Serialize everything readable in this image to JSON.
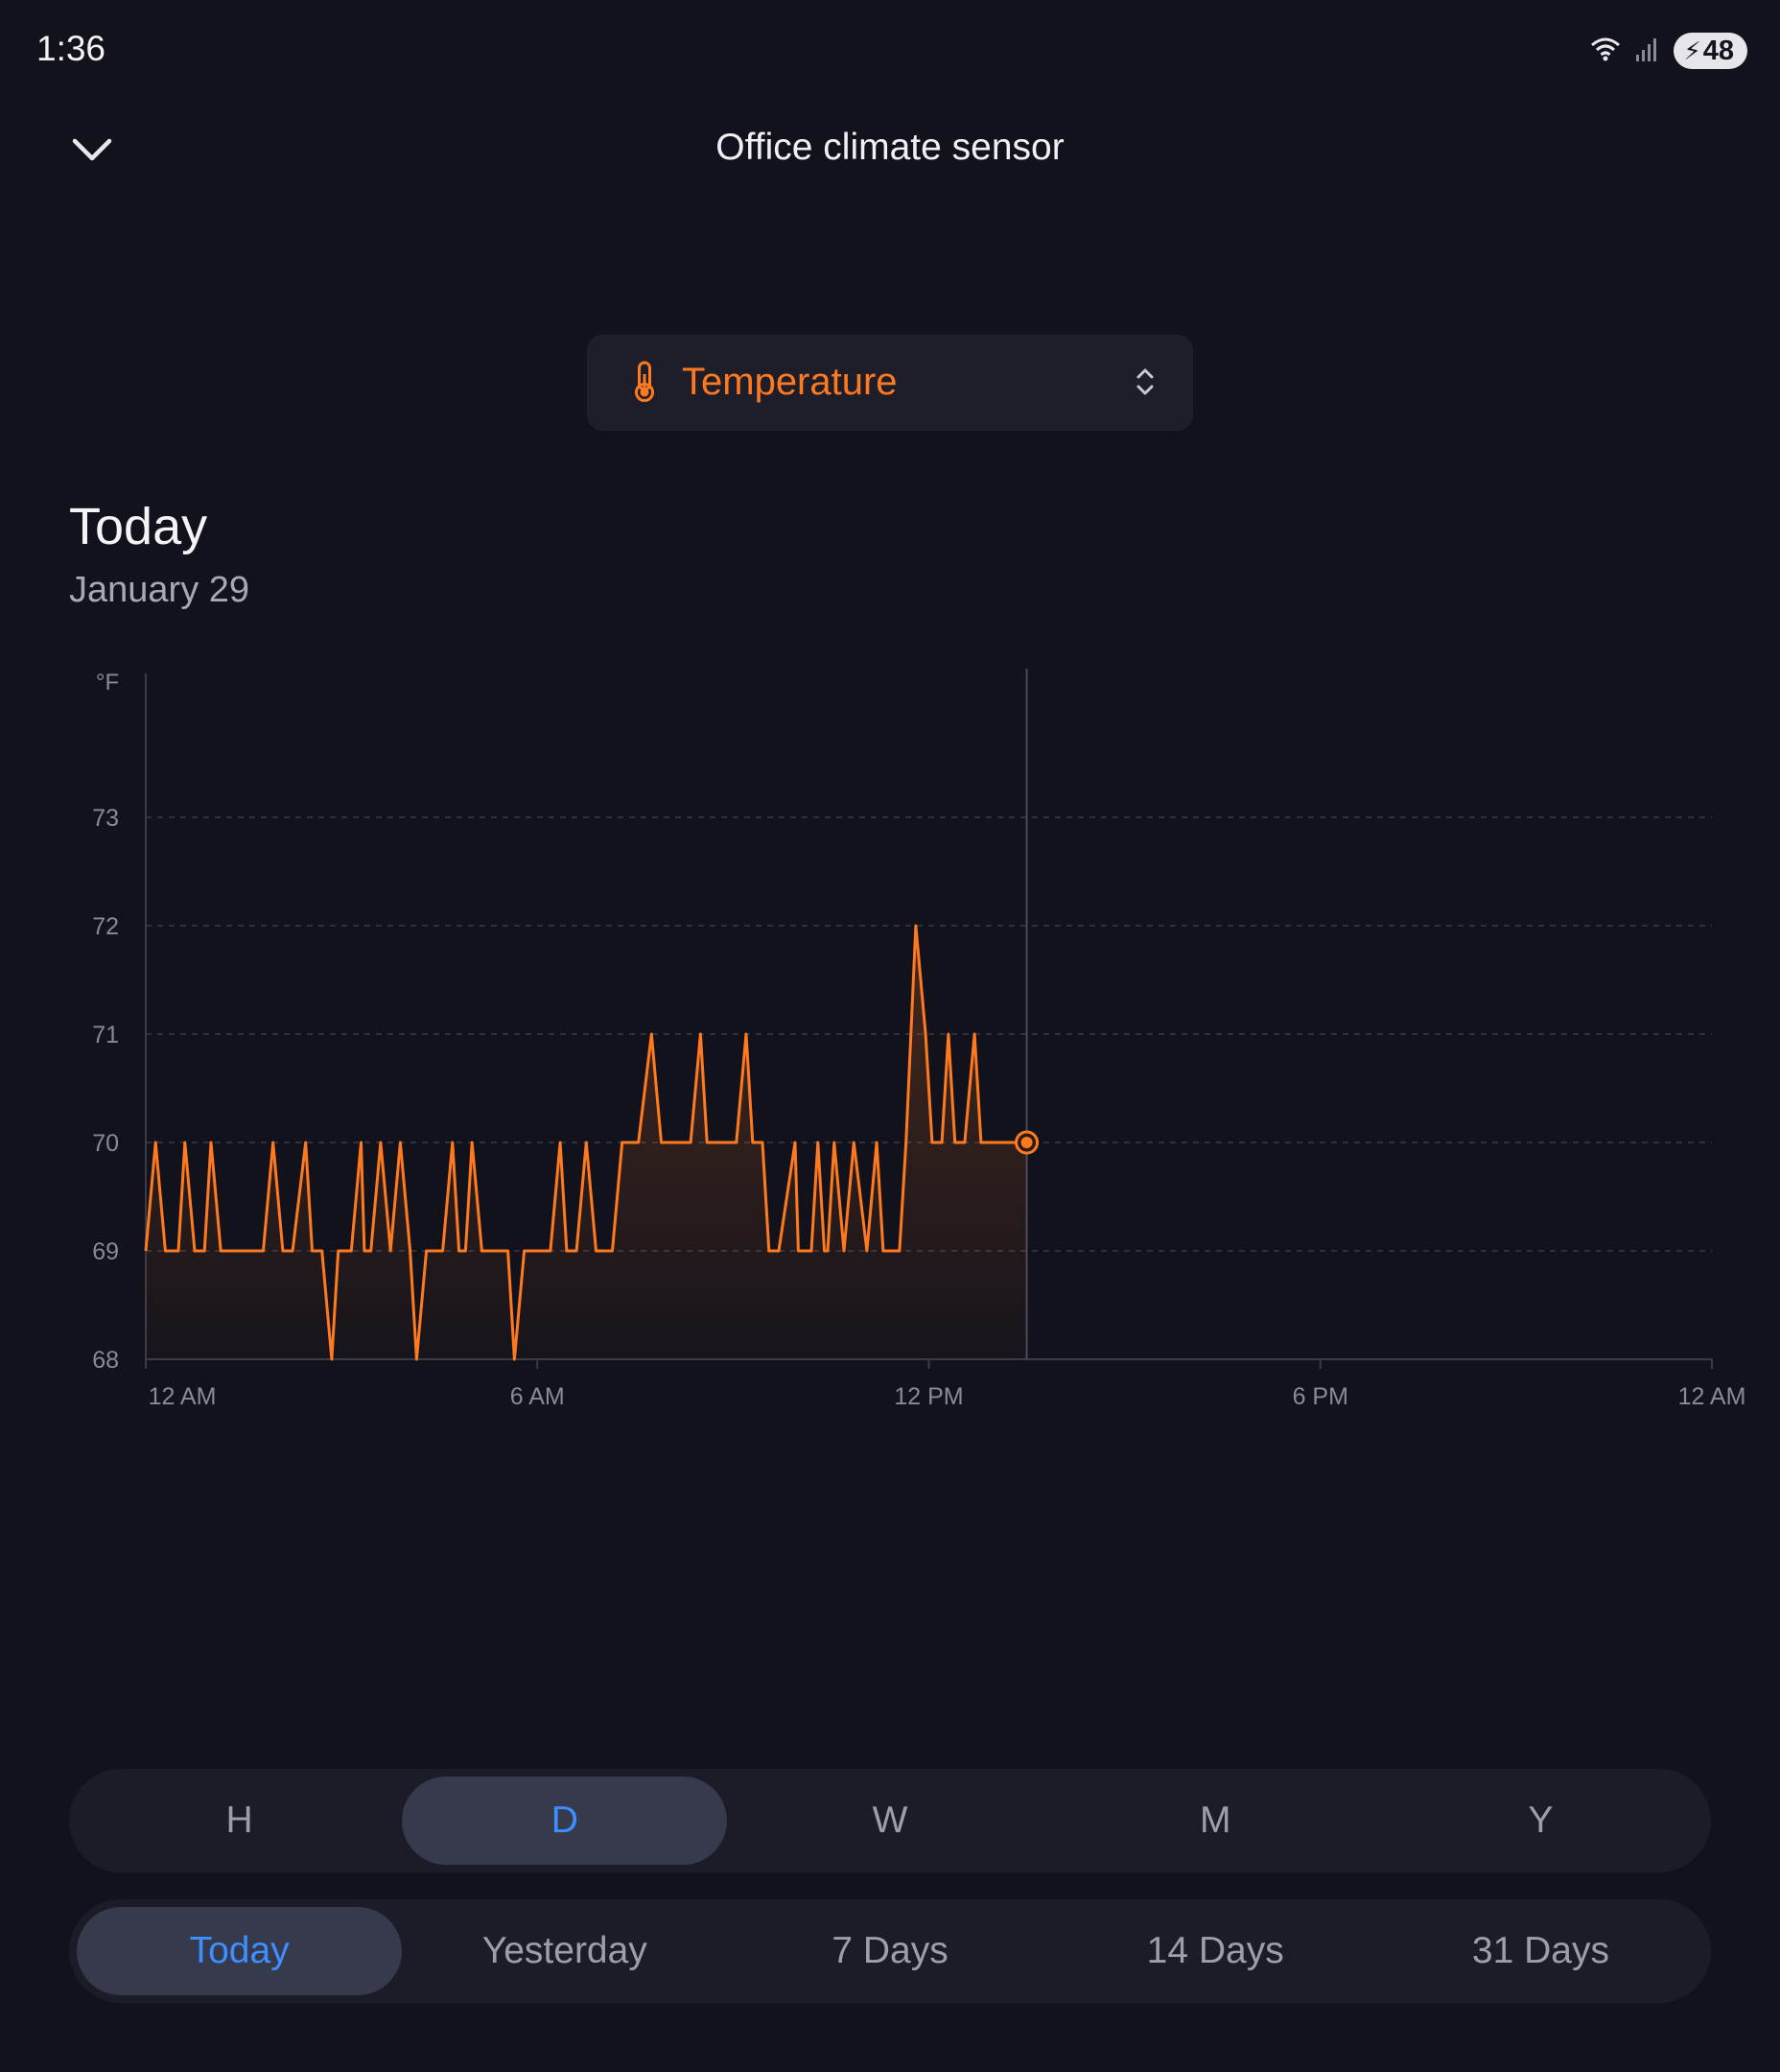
{
  "status_bar": {
    "time": "1:36",
    "battery": "48"
  },
  "header": {
    "title": "Office climate sensor"
  },
  "metric_selector": {
    "label": "Temperature"
  },
  "period": {
    "title": "Today",
    "date": "January 29"
  },
  "chart_data": {
    "type": "line",
    "ylabel": "°F",
    "ylim": [
      68,
      73
    ],
    "yticks": [
      68,
      69,
      70,
      71,
      72,
      73
    ],
    "xlim": [
      0,
      24
    ],
    "xticks": [
      {
        "x": 0,
        "label": "12 AM"
      },
      {
        "x": 6,
        "label": "6 AM"
      },
      {
        "x": 12,
        "label": "12 PM"
      },
      {
        "x": 18,
        "label": "6 PM"
      },
      {
        "x": 24,
        "label": "12 AM"
      }
    ],
    "grid": true,
    "line_color": "#ff7a1f",
    "current_marker_time": 13.5,
    "series": [
      {
        "x": [
          0,
          0.15,
          0.3,
          0.5,
          0.6,
          0.75,
          0.9,
          1.0,
          1.15,
          1.3,
          1.4,
          1.5,
          1.8,
          1.95,
          2.1,
          2.25,
          2.45,
          2.55,
          2.7,
          2.85,
          2.95,
          3.05,
          3.15,
          3.3,
          3.35,
          3.45,
          3.6,
          3.75,
          3.9,
          4.05,
          4.15,
          4.3,
          4.45,
          4.55,
          4.7,
          4.8,
          4.9,
          5.0,
          5.15,
          5.25,
          5.4,
          5.55,
          5.65,
          5.8,
          5.95,
          6.05,
          6.2,
          6.35,
          6.45,
          6.6,
          6.75,
          6.9,
          7.05,
          7.15,
          7.3,
          7.45,
          7.55,
          7.75,
          7.9,
          8.1,
          8.25,
          8.35,
          8.5,
          8.6,
          8.75,
          9.05,
          9.2,
          9.3,
          9.45,
          9.55,
          9.7,
          9.95,
          10.0,
          10.2,
          10.3,
          10.4,
          10.45,
          10.55,
          10.7,
          10.85,
          11.05,
          11.2,
          11.3,
          11.45,
          11.55,
          11.65,
          11.8,
          11.95,
          12.05,
          12.2,
          12.3,
          12.4,
          12.55,
          12.7,
          12.8,
          12.9,
          13.05,
          13.15,
          13.25,
          13.35,
          13.5
        ],
        "y": [
          69,
          70,
          69,
          69,
          70,
          69,
          69,
          70,
          69,
          69,
          69,
          69,
          69,
          70,
          69,
          69,
          70,
          69,
          69,
          68,
          69,
          69,
          69,
          70,
          69,
          69,
          70,
          69,
          70,
          69,
          68,
          69,
          69,
          69,
          70,
          69,
          69,
          70,
          69,
          69,
          69,
          69,
          68,
          69,
          69,
          69,
          69,
          70,
          69,
          69,
          70,
          69,
          69,
          69,
          70,
          70,
          70,
          71,
          70,
          70,
          70,
          70,
          71,
          70,
          70,
          70,
          71,
          70,
          70,
          69,
          69,
          70,
          69,
          69,
          70,
          69,
          69,
          70,
          69,
          70,
          69,
          70,
          69,
          69,
          69,
          70,
          72,
          71,
          70,
          70,
          71,
          70,
          70,
          71,
          70,
          70,
          70,
          70,
          70,
          70,
          70
        ]
      }
    ]
  },
  "resolution_tabs": [
    {
      "label": "H"
    },
    {
      "label": "D",
      "active": true
    },
    {
      "label": "W"
    },
    {
      "label": "M"
    },
    {
      "label": "Y"
    }
  ],
  "range_tabs": [
    {
      "label": "Today",
      "active": true
    },
    {
      "label": "Yesterday"
    },
    {
      "label": "7 Days"
    },
    {
      "label": "14 Days"
    },
    {
      "label": "31 Days"
    }
  ]
}
